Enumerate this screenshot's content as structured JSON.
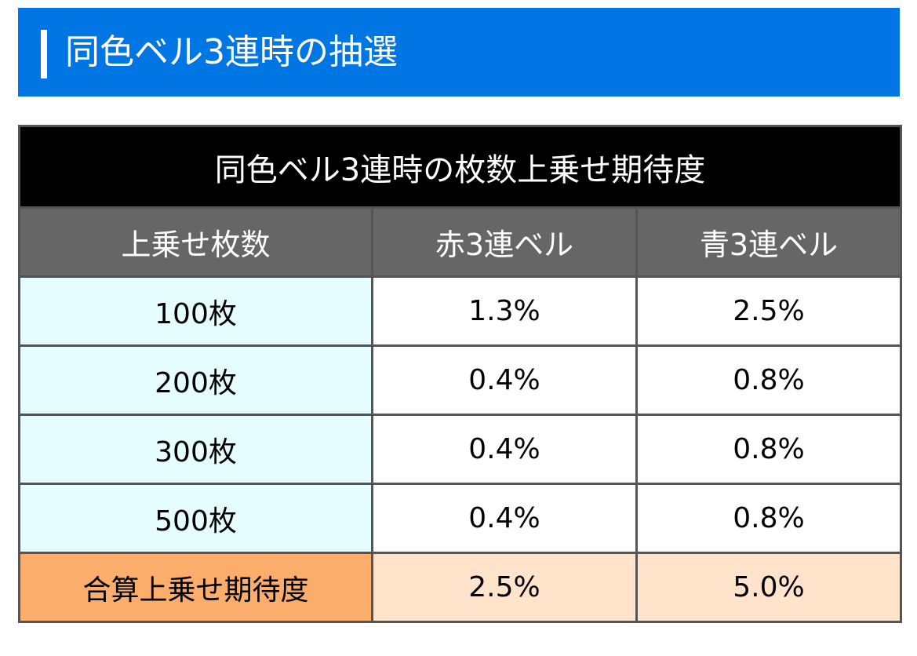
{
  "section": {
    "title": "同色ベル3連時の抽選"
  },
  "table": {
    "caption": "同色ベル3連時の枚数上乗せ期待度",
    "headers": [
      "上乗せ枚数",
      "赤3連ベル",
      "青3連ベル"
    ],
    "rows": [
      {
        "label": "100枚",
        "red": "1.3%",
        "blue": "2.5%"
      },
      {
        "label": "200枚",
        "red": "0.4%",
        "blue": "0.8%"
      },
      {
        "label": "300枚",
        "red": "0.4%",
        "blue": "0.8%"
      },
      {
        "label": "500枚",
        "red": "0.4%",
        "blue": "0.8%"
      }
    ],
    "total": {
      "label": "合算上乗せ期待度",
      "red": "2.5%",
      "blue": "5.0%"
    }
  },
  "colors": {
    "header_blue": "#0076e5",
    "caption_black": "#000000",
    "column_header_gray": "#666666",
    "label_cell_cyan": "#e5fdff",
    "total_label_orange": "#fbad6b",
    "total_value_peach": "#ffe3ca"
  }
}
